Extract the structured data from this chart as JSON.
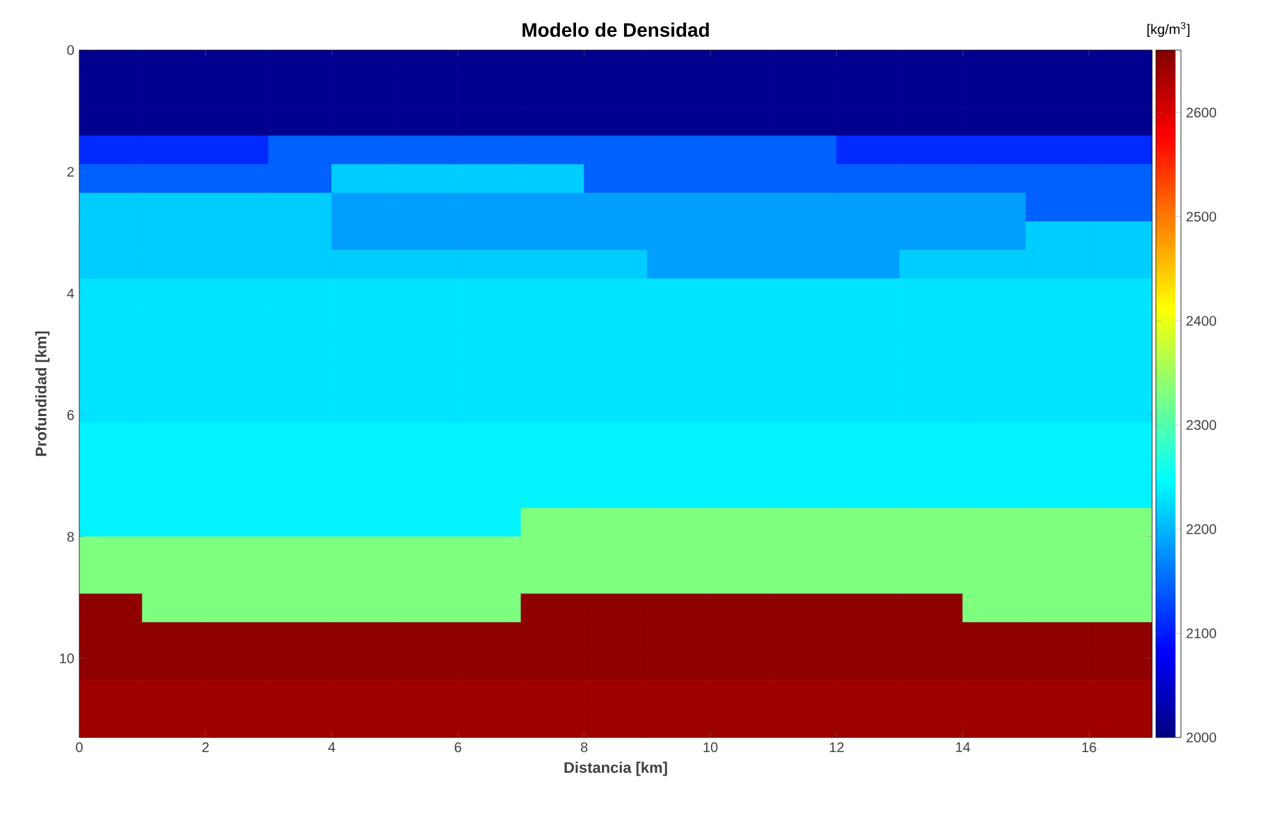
{
  "chart_data": {
    "type": "heatmap",
    "title": "Modelo de Densidad",
    "xlabel": "Distancia [km]",
    "ylabel": "Profundidad [km]",
    "clabel": "[kg/m$^{3}$]",
    "x": [
      0.5,
      1.5,
      2.5,
      3.5,
      4.5,
      5.5,
      6.5,
      7.5,
      8.5,
      9.5,
      10.5,
      11.5,
      12.5,
      13.5,
      14.5,
      15.5,
      16.5
    ],
    "y": [
      0.235,
      0.705,
      1.175,
      1.645,
      2.115,
      2.585,
      3.055,
      3.525,
      3.995,
      4.465,
      4.935,
      5.405,
      5.885,
      6.355,
      6.825,
      7.295,
      7.765,
      8.235,
      8.705,
      9.175,
      9.645,
      10.125,
      10.595,
      11.065
    ],
    "xlim": [
      0,
      17
    ],
    "xticks": [
      0,
      2,
      4,
      6,
      8,
      10,
      12,
      14,
      16
    ],
    "ylim": [
      11.3,
      0
    ],
    "yticks": [
      0,
      2,
      4,
      6,
      8,
      10
    ],
    "clim": [
      2000,
      2660
    ],
    "cticks": [
      2000,
      2100,
      2200,
      2300,
      2400,
      2500,
      2600
    ],
    "cells": [
      [
        2010,
        2010,
        2010,
        2010,
        2010,
        2010,
        2010,
        2010,
        2010,
        2010,
        2010,
        2010,
        2010,
        2010,
        2010,
        2010,
        2010
      ],
      [
        2010,
        2010,
        2010,
        2010,
        2010,
        2010,
        2010,
        2010,
        2010,
        2010,
        2010,
        2010,
        2010,
        2010,
        2010,
        2010,
        2010
      ],
      [
        2010,
        2010,
        2010,
        2010,
        2010,
        2010,
        2010,
        2010,
        2010,
        2010,
        2010,
        2010,
        2010,
        2010,
        2010,
        2010,
        2010
      ],
      [
        2110,
        2110,
        2110,
        2145,
        2145,
        2145,
        2145,
        2145,
        2145,
        2145,
        2145,
        2145,
        2110,
        2110,
        2110,
        2110,
        2110
      ],
      [
        2145,
        2145,
        2145,
        2145,
        2215,
        2215,
        2215,
        2215,
        2145,
        2145,
        2145,
        2145,
        2145,
        2145,
        2145,
        2145,
        2145
      ],
      [
        2215,
        2215,
        2215,
        2215,
        2185,
        2185,
        2185,
        2185,
        2185,
        2185,
        2185,
        2185,
        2185,
        2185,
        2185,
        2145,
        2145
      ],
      [
        2215,
        2215,
        2215,
        2215,
        2185,
        2185,
        2185,
        2185,
        2185,
        2185,
        2185,
        2185,
        2185,
        2185,
        2185,
        2215,
        2215
      ],
      [
        2215,
        2215,
        2215,
        2215,
        2215,
        2215,
        2215,
        2215,
        2215,
        2185,
        2185,
        2185,
        2185,
        2215,
        2215,
        2215,
        2215
      ],
      [
        2230,
        2230,
        2230,
        2230,
        2230,
        2230,
        2230,
        2230,
        2230,
        2230,
        2230,
        2230,
        2230,
        2230,
        2230,
        2230,
        2230
      ],
      [
        2230,
        2230,
        2230,
        2230,
        2230,
        2230,
        2230,
        2230,
        2230,
        2230,
        2230,
        2230,
        2230,
        2230,
        2230,
        2230,
        2230
      ],
      [
        2230,
        2230,
        2230,
        2230,
        2230,
        2230,
        2230,
        2230,
        2230,
        2230,
        2230,
        2230,
        2230,
        2230,
        2230,
        2230,
        2230
      ],
      [
        2230,
        2230,
        2230,
        2230,
        2230,
        2230,
        2230,
        2230,
        2230,
        2230,
        2230,
        2230,
        2230,
        2230,
        2230,
        2230,
        2230
      ],
      [
        2230,
        2230,
        2230,
        2230,
        2230,
        2230,
        2230,
        2230,
        2230,
        2230,
        2230,
        2230,
        2230,
        2230,
        2230,
        2230,
        2230
      ],
      [
        2240,
        2240,
        2240,
        2240,
        2240,
        2240,
        2240,
        2240,
        2240,
        2240,
        2240,
        2240,
        2240,
        2240,
        2240,
        2240,
        2240
      ],
      [
        2240,
        2240,
        2240,
        2240,
        2240,
        2240,
        2240,
        2240,
        2240,
        2240,
        2240,
        2240,
        2240,
        2240,
        2240,
        2240,
        2240
      ],
      [
        2240,
        2240,
        2240,
        2240,
        2240,
        2240,
        2240,
        2240,
        2240,
        2240,
        2240,
        2240,
        2240,
        2240,
        2240,
        2240,
        2240
      ],
      [
        2240,
        2240,
        2240,
        2240,
        2240,
        2240,
        2240,
        2330,
        2330,
        2330,
        2330,
        2330,
        2330,
        2330,
        2330,
        2330,
        2330
      ],
      [
        2330,
        2330,
        2330,
        2330,
        2330,
        2330,
        2330,
        2330,
        2330,
        2330,
        2330,
        2330,
        2330,
        2330,
        2330,
        2330,
        2330
      ],
      [
        2330,
        2330,
        2330,
        2330,
        2330,
        2330,
        2330,
        2330,
        2330,
        2330,
        2330,
        2330,
        2330,
        2330,
        2330,
        2330,
        2330
      ],
      [
        2650,
        2330,
        2330,
        2330,
        2330,
        2330,
        2330,
        2650,
        2650,
        2650,
        2650,
        2650,
        2650,
        2650,
        2330,
        2330,
        2330
      ],
      [
        2650,
        2650,
        2650,
        2650,
        2650,
        2650,
        2650,
        2650,
        2650,
        2650,
        2650,
        2650,
        2650,
        2650,
        2650,
        2650,
        2650
      ],
      [
        2650,
        2650,
        2650,
        2650,
        2650,
        2650,
        2650,
        2650,
        2650,
        2650,
        2650,
        2650,
        2650,
        2650,
        2650,
        2650,
        2650
      ],
      [
        2640,
        2640,
        2640,
        2640,
        2640,
        2640,
        2640,
        2640,
        2640,
        2640,
        2640,
        2640,
        2640,
        2640,
        2640,
        2640,
        2640
      ],
      [
        2640,
        2640,
        2640,
        2640,
        2640,
        2640,
        2640,
        2640,
        2640,
        2640,
        2640,
        2640,
        2640,
        2640,
        2640,
        2640,
        2640
      ]
    ]
  }
}
